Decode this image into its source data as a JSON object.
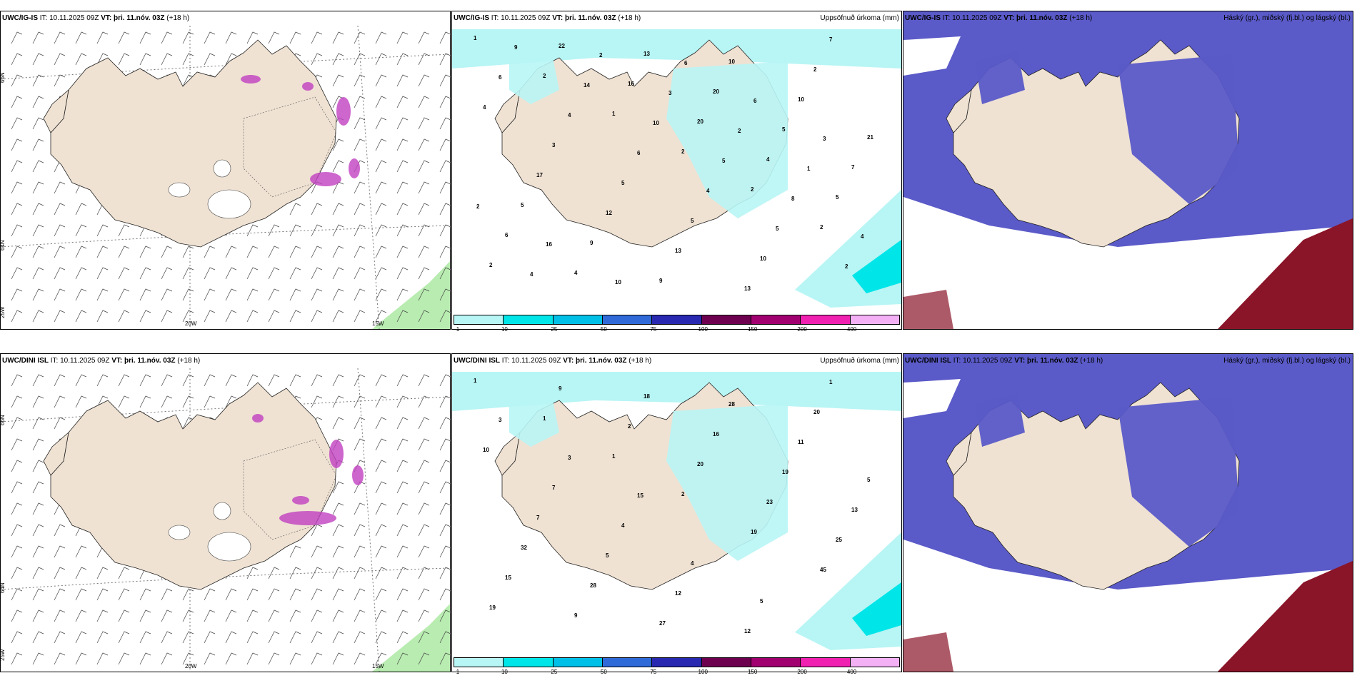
{
  "rows": [
    {
      "panels": [
        {
          "id": "r1p1",
          "kind": "wind",
          "title_model": "UWC/IG-IS",
          "title_it": " IT: 10.11.2025 09Z ",
          "title_vt": "VT: þri. 11.nóv. 03Z",
          "title_lead": " (+18 h)",
          "right": ""
        },
        {
          "id": "r1p2",
          "kind": "precip",
          "title_model": "UWC/IG-IS",
          "title_it": " IT: 10.11.2025 09Z ",
          "title_vt": "VT: þri. 11.nóv. 03Z",
          "title_lead": " (+18 h)",
          "right": "Uppsöfnuð úrkoma (mm)"
        },
        {
          "id": "r1p3",
          "kind": "cloud",
          "title_model": "UWC/IG-IS",
          "title_it": " IT: 10.11.2025 09Z ",
          "title_vt": "VT: þri. 11.nóv. 03Z",
          "title_lead": " (+18 h)",
          "right": "Háský (gr.), miðský (fj.bl.) og lágský (bl.)"
        }
      ]
    },
    {
      "panels": [
        {
          "id": "r2p1",
          "kind": "wind",
          "title_model": "UWC/DINI ISL",
          "title_it": " IT: 10.11.2025 09Z ",
          "title_vt": "VT: þri. 11.nóv. 03Z",
          "title_lead": " (+18 h)",
          "right": ""
        },
        {
          "id": "r2p2",
          "kind": "precip",
          "title_model": "UWC/DINI ISL",
          "title_it": " IT: 10.11.2025 09Z ",
          "title_vt": "VT: þri. 11.nóv. 03Z",
          "title_lead": " (+18 h)",
          "right": "Uppsöfnuð úrkoma (mm)"
        },
        {
          "id": "r2p3",
          "kind": "cloud",
          "title_model": "UWC/DINI ISL",
          "title_it": " IT: 10.11.2025 09Z ",
          "title_vt": "VT: þri. 11.nóv. 03Z",
          "title_lead": " (+18 h)",
          "right": "Háský (gr.), miðský (fj.bl.) og lágský (bl.)"
        }
      ]
    }
  ],
  "grid_labels": {
    "lat66": "66N",
    "lat64": "64N",
    "lon25": "25W",
    "lon20": "20W",
    "lon15": "15W"
  },
  "colorbar": {
    "labels": [
      "1",
      "10",
      "25",
      "50",
      "75",
      "100",
      "150",
      "200",
      "400"
    ],
    "colors": [
      "#b8f5f5",
      "#00e5e8",
      "#00c0e8",
      "#2f6ad8",
      "#2828b0",
      "#6e0050",
      "#a00070",
      "#f020b0",
      "#f4b0f4"
    ]
  },
  "precip_values_row1": [
    "1",
    "2",
    "1",
    "2",
    "2",
    "2",
    "2",
    "22",
    "16",
    "20",
    "4",
    "5",
    "6",
    "4",
    "13",
    "20",
    "5",
    "7",
    "5",
    "9",
    "9",
    "10",
    "10",
    "21",
    "17",
    "12",
    "13",
    "13",
    "2",
    "4",
    "3",
    "5",
    "5",
    "10",
    "7",
    "6",
    "4",
    "6",
    "4",
    "5",
    "2",
    "9",
    "14",
    "10",
    "5",
    "8",
    "4",
    "4",
    "2",
    "3",
    "2",
    "1",
    "2",
    "16",
    "10",
    "6",
    "6",
    "3"
  ],
  "precip_values_row2": [
    "1",
    "1",
    "1",
    "2",
    "19",
    "45",
    "19",
    "9",
    "2",
    "20",
    "23",
    "25",
    "15",
    "9",
    "18",
    "16",
    "19",
    "13",
    "32",
    "28",
    "27",
    "28",
    "11",
    "5",
    "7",
    "5",
    "12",
    "12",
    "20",
    "10",
    "7",
    "4",
    "4",
    "5",
    "1",
    "3",
    "3",
    "15"
  ],
  "colors": {
    "land": "#efe2d3",
    "sea": "#ffffff",
    "precip_light": "#b8f5f5",
    "precip_mid": "#00e5e8",
    "high_cloud_blue": "#5a5ac8",
    "low_cloud_red": "#8a1428",
    "green_wind": "#b8ecb0"
  }
}
